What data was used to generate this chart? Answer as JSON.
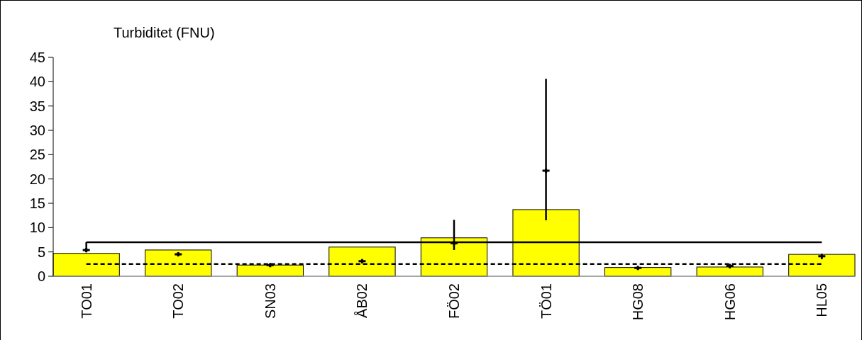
{
  "chart_data": {
    "type": "bar",
    "title": "Turbiditet (FNU)",
    "categories": [
      "TO01",
      "TO02",
      "SN03",
      "ÅB02",
      "FÖ02",
      "TÖ01",
      "HG08",
      "HG06",
      "HL05"
    ],
    "series": [
      {
        "color": "#ffff00",
        "values": [
          4.7,
          5.4,
          2.3,
          6.0,
          7.9,
          13.7,
          1.8,
          1.9,
          4.5
        ]
      },
      {
        "type": "scatter",
        "color": "#000000",
        "marker": "cross",
        "values": [
          5.4,
          4.5,
          2.3,
          3.1,
          6.8,
          21.7,
          1.7,
          2.1,
          4.1
        ],
        "errors": [
          [
            4.9,
            7.0
          ],
          null,
          null,
          null,
          [
            5.4,
            11.6
          ],
          [
            11.5,
            40.6
          ],
          null,
          [
            1.6,
            2.3
          ],
          [
            3.5,
            4.6
          ]
        ]
      }
    ],
    "ylim": [
      0,
      45
    ],
    "yticks": [
      0,
      5,
      10,
      15,
      20,
      25,
      30,
      35,
      40,
      45
    ],
    "ref_lines": [
      {
        "axis": "y",
        "value": 7.0,
        "color": "#000000",
        "line_style": "solid"
      },
      {
        "axis": "y",
        "value": 2.5,
        "color": "#000000",
        "line_style": "dashed"
      }
    ],
    "grid": false
  }
}
